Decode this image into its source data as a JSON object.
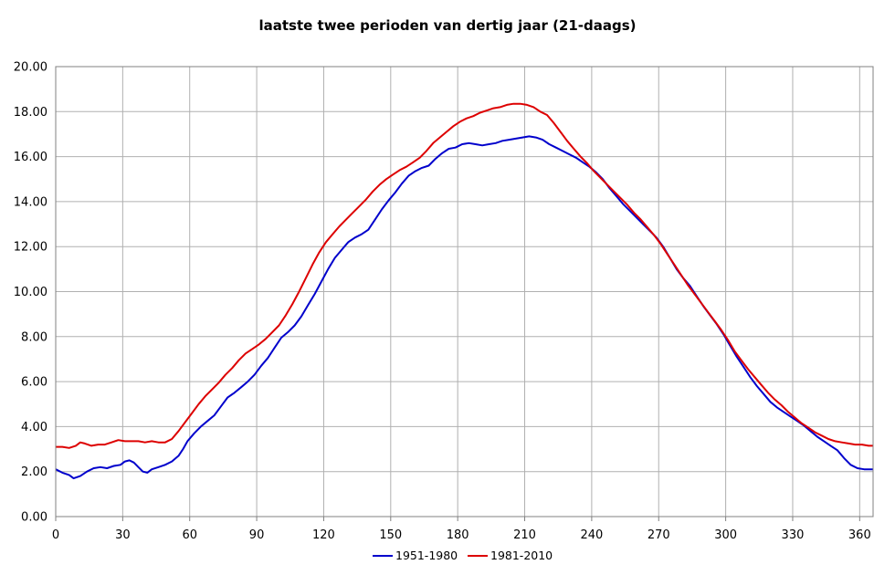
{
  "chart_data": {
    "type": "line",
    "title": "laatste twee perioden van dertig jaar (21-daags)",
    "xlabel": "",
    "ylabel": "",
    "xlim": [
      0,
      366
    ],
    "ylim": [
      0,
      20
    ],
    "x_ticks": [
      0,
      30,
      60,
      90,
      120,
      150,
      180,
      210,
      240,
      270,
      300,
      330,
      360
    ],
    "y_ticks": [
      "0.00",
      "2.00",
      "4.00",
      "6.00",
      "8.00",
      "10.00",
      "12.00",
      "14.00",
      "16.00",
      "18.00",
      "20.00"
    ],
    "grid": true,
    "legend_position": "bottom-center",
    "series": [
      {
        "name": "1951-1980",
        "color": "#0000cc",
        "points": [
          [
            0,
            2.1
          ],
          [
            3,
            1.95
          ],
          [
            6,
            1.85
          ],
          [
            8,
            1.7
          ],
          [
            11,
            1.8
          ],
          [
            14,
            2.0
          ],
          [
            17,
            2.15
          ],
          [
            20,
            2.2
          ],
          [
            23,
            2.15
          ],
          [
            26,
            2.25
          ],
          [
            29,
            2.3
          ],
          [
            31,
            2.45
          ],
          [
            33,
            2.5
          ],
          [
            35,
            2.4
          ],
          [
            37,
            2.2
          ],
          [
            39,
            2.0
          ],
          [
            41,
            1.95
          ],
          [
            43,
            2.1
          ],
          [
            46,
            2.2
          ],
          [
            49,
            2.3
          ],
          [
            52,
            2.45
          ],
          [
            55,
            2.7
          ],
          [
            57,
            3.0
          ],
          [
            59,
            3.35
          ],
          [
            62,
            3.7
          ],
          [
            65,
            4.0
          ],
          [
            68,
            4.25
          ],
          [
            71,
            4.5
          ],
          [
            74,
            4.9
          ],
          [
            77,
            5.3
          ],
          [
            80,
            5.5
          ],
          [
            83,
            5.75
          ],
          [
            86,
            6.0
          ],
          [
            89,
            6.3
          ],
          [
            92,
            6.7
          ],
          [
            95,
            7.05
          ],
          [
            98,
            7.5
          ],
          [
            101,
            7.95
          ],
          [
            104,
            8.2
          ],
          [
            107,
            8.5
          ],
          [
            110,
            8.9
          ],
          [
            113,
            9.4
          ],
          [
            116,
            9.9
          ],
          [
            119,
            10.45
          ],
          [
            122,
            11.0
          ],
          [
            125,
            11.5
          ],
          [
            128,
            11.85
          ],
          [
            131,
            12.2
          ],
          [
            134,
            12.4
          ],
          [
            137,
            12.55
          ],
          [
            140,
            12.75
          ],
          [
            143,
            13.2
          ],
          [
            146,
            13.65
          ],
          [
            149,
            14.05
          ],
          [
            152,
            14.4
          ],
          [
            155,
            14.8
          ],
          [
            158,
            15.15
          ],
          [
            161,
            15.35
          ],
          [
            164,
            15.5
          ],
          [
            167,
            15.6
          ],
          [
            170,
            15.9
          ],
          [
            173,
            16.15
          ],
          [
            176,
            16.35
          ],
          [
            179,
            16.4
          ],
          [
            182,
            16.55
          ],
          [
            185,
            16.6
          ],
          [
            188,
            16.55
          ],
          [
            191,
            16.5
          ],
          [
            194,
            16.55
          ],
          [
            197,
            16.6
          ],
          [
            200,
            16.7
          ],
          [
            203,
            16.75
          ],
          [
            206,
            16.8
          ],
          [
            209,
            16.85
          ],
          [
            212,
            16.9
          ],
          [
            215,
            16.85
          ],
          [
            218,
            16.75
          ],
          [
            221,
            16.55
          ],
          [
            224,
            16.4
          ],
          [
            227,
            16.25
          ],
          [
            230,
            16.1
          ],
          [
            233,
            15.95
          ],
          [
            236,
            15.75
          ],
          [
            239,
            15.55
          ],
          [
            242,
            15.3
          ],
          [
            245,
            15.0
          ],
          [
            248,
            14.6
          ],
          [
            251,
            14.25
          ],
          [
            254,
            13.9
          ],
          [
            257,
            13.6
          ],
          [
            260,
            13.3
          ],
          [
            263,
            13.0
          ],
          [
            266,
            12.7
          ],
          [
            269,
            12.4
          ],
          [
            272,
            12.0
          ],
          [
            275,
            11.5
          ],
          [
            278,
            11.0
          ],
          [
            281,
            10.6
          ],
          [
            284,
            10.25
          ],
          [
            287,
            9.8
          ],
          [
            290,
            9.35
          ],
          [
            293,
            8.95
          ],
          [
            296,
            8.55
          ],
          [
            299,
            8.1
          ],
          [
            302,
            7.6
          ],
          [
            305,
            7.1
          ],
          [
            308,
            6.65
          ],
          [
            311,
            6.2
          ],
          [
            314,
            5.8
          ],
          [
            317,
            5.45
          ],
          [
            320,
            5.1
          ],
          [
            323,
            4.85
          ],
          [
            326,
            4.65
          ],
          [
            329,
            4.45
          ],
          [
            332,
            4.25
          ],
          [
            335,
            4.05
          ],
          [
            338,
            3.8
          ],
          [
            341,
            3.55
          ],
          [
            344,
            3.35
          ],
          [
            347,
            3.15
          ],
          [
            350,
            2.95
          ],
          [
            353,
            2.6
          ],
          [
            356,
            2.3
          ],
          [
            359,
            2.15
          ],
          [
            362,
            2.1
          ],
          [
            366,
            2.1
          ]
        ]
      },
      {
        "name": "1981-2010",
        "color": "#dd0000",
        "points": [
          [
            0,
            3.1
          ],
          [
            3,
            3.1
          ],
          [
            6,
            3.05
          ],
          [
            9,
            3.15
          ],
          [
            11,
            3.3
          ],
          [
            13,
            3.25
          ],
          [
            16,
            3.15
          ],
          [
            19,
            3.2
          ],
          [
            22,
            3.2
          ],
          [
            25,
            3.3
          ],
          [
            28,
            3.4
          ],
          [
            31,
            3.35
          ],
          [
            34,
            3.35
          ],
          [
            37,
            3.35
          ],
          [
            40,
            3.3
          ],
          [
            43,
            3.35
          ],
          [
            46,
            3.3
          ],
          [
            49,
            3.3
          ],
          [
            52,
            3.45
          ],
          [
            55,
            3.8
          ],
          [
            58,
            4.2
          ],
          [
            61,
            4.6
          ],
          [
            64,
            5.0
          ],
          [
            67,
            5.35
          ],
          [
            70,
            5.65
          ],
          [
            73,
            5.95
          ],
          [
            76,
            6.3
          ],
          [
            79,
            6.6
          ],
          [
            82,
            6.95
          ],
          [
            85,
            7.25
          ],
          [
            88,
            7.45
          ],
          [
            91,
            7.65
          ],
          [
            94,
            7.9
          ],
          [
            97,
            8.2
          ],
          [
            100,
            8.5
          ],
          [
            103,
            8.95
          ],
          [
            106,
            9.45
          ],
          [
            109,
            10.0
          ],
          [
            112,
            10.6
          ],
          [
            115,
            11.2
          ],
          [
            118,
            11.75
          ],
          [
            121,
            12.2
          ],
          [
            124,
            12.55
          ],
          [
            127,
            12.9
          ],
          [
            130,
            13.2
          ],
          [
            133,
            13.5
          ],
          [
            136,
            13.8
          ],
          [
            139,
            14.1
          ],
          [
            142,
            14.45
          ],
          [
            145,
            14.75
          ],
          [
            148,
            15.0
          ],
          [
            151,
            15.2
          ],
          [
            154,
            15.4
          ],
          [
            157,
            15.55
          ],
          [
            160,
            15.75
          ],
          [
            163,
            15.95
          ],
          [
            166,
            16.25
          ],
          [
            169,
            16.6
          ],
          [
            172,
            16.85
          ],
          [
            175,
            17.1
          ],
          [
            178,
            17.35
          ],
          [
            181,
            17.55
          ],
          [
            184,
            17.7
          ],
          [
            187,
            17.8
          ],
          [
            190,
            17.95
          ],
          [
            193,
            18.05
          ],
          [
            196,
            18.15
          ],
          [
            199,
            18.2
          ],
          [
            202,
            18.3
          ],
          [
            205,
            18.35
          ],
          [
            208,
            18.35
          ],
          [
            211,
            18.3
          ],
          [
            214,
            18.2
          ],
          [
            217,
            18.0
          ],
          [
            220,
            17.85
          ],
          [
            223,
            17.5
          ],
          [
            226,
            17.1
          ],
          [
            229,
            16.7
          ],
          [
            232,
            16.35
          ],
          [
            235,
            16.0
          ],
          [
            238,
            15.7
          ],
          [
            241,
            15.35
          ],
          [
            244,
            15.05
          ],
          [
            247,
            14.75
          ],
          [
            250,
            14.45
          ],
          [
            253,
            14.15
          ],
          [
            256,
            13.85
          ],
          [
            259,
            13.5
          ],
          [
            262,
            13.2
          ],
          [
            265,
            12.85
          ],
          [
            268,
            12.5
          ],
          [
            271,
            12.1
          ],
          [
            274,
            11.65
          ],
          [
            277,
            11.2
          ],
          [
            280,
            10.75
          ],
          [
            283,
            10.3
          ],
          [
            286,
            9.9
          ],
          [
            289,
            9.5
          ],
          [
            292,
            9.1
          ],
          [
            295,
            8.7
          ],
          [
            298,
            8.3
          ],
          [
            301,
            7.85
          ],
          [
            304,
            7.35
          ],
          [
            307,
            6.95
          ],
          [
            310,
            6.55
          ],
          [
            313,
            6.2
          ],
          [
            316,
            5.85
          ],
          [
            319,
            5.5
          ],
          [
            322,
            5.2
          ],
          [
            325,
            4.95
          ],
          [
            328,
            4.65
          ],
          [
            331,
            4.4
          ],
          [
            334,
            4.15
          ],
          [
            337,
            3.95
          ],
          [
            340,
            3.75
          ],
          [
            343,
            3.6
          ],
          [
            346,
            3.45
          ],
          [
            349,
            3.35
          ],
          [
            352,
            3.3
          ],
          [
            355,
            3.25
          ],
          [
            358,
            3.2
          ],
          [
            361,
            3.2
          ],
          [
            364,
            3.15
          ],
          [
            366,
            3.15
          ]
        ]
      }
    ]
  }
}
